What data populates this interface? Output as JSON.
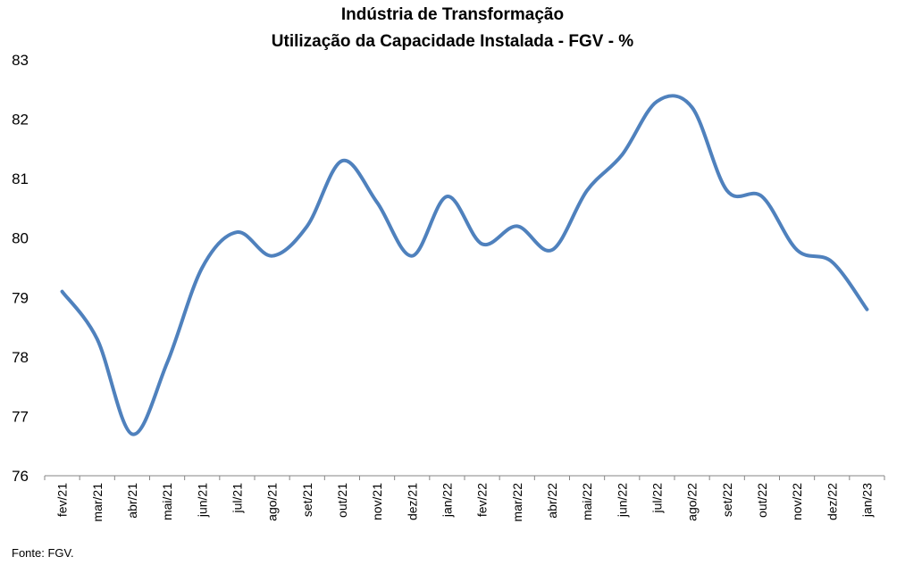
{
  "title_line1": "Indústria de Transformação",
  "title_line2": "Utilização da Capacidade Instalada - FGV - %",
  "source": "Fonte: FGV.",
  "chart_data": {
    "type": "line",
    "title": "Indústria de Transformação — Utilização da Capacidade Instalada - FGV - %",
    "xlabel": "",
    "ylabel": "",
    "categories": [
      "fev/21",
      "mar/21",
      "abr/21",
      "mai/21",
      "jun/21",
      "jul/21",
      "ago/21",
      "set/21",
      "out/21",
      "nov/21",
      "dez/21",
      "jan/22",
      "fev/22",
      "mar/22",
      "abr/22",
      "mai/22",
      "jun/22",
      "jul/22",
      "ago/22",
      "set/22",
      "out/22",
      "nov/22",
      "dez/22",
      "jan/23"
    ],
    "series": [
      {
        "values": [
          79.1,
          78.3,
          76.7,
          77.9,
          79.5,
          80.1,
          79.7,
          80.2,
          81.3,
          80.6,
          79.7,
          80.7,
          79.9,
          80.2,
          79.8,
          80.8,
          81.4,
          82.3,
          82.2,
          80.8,
          80.7,
          79.8,
          79.6,
          78.8
        ]
      }
    ],
    "ylim": [
      76,
      83
    ],
    "yticks": [
      "76",
      "77",
      "78",
      "79",
      "80",
      "81",
      "82",
      "83"
    ],
    "grid": false,
    "legend": "none",
    "line_color": "#4F81BD"
  }
}
